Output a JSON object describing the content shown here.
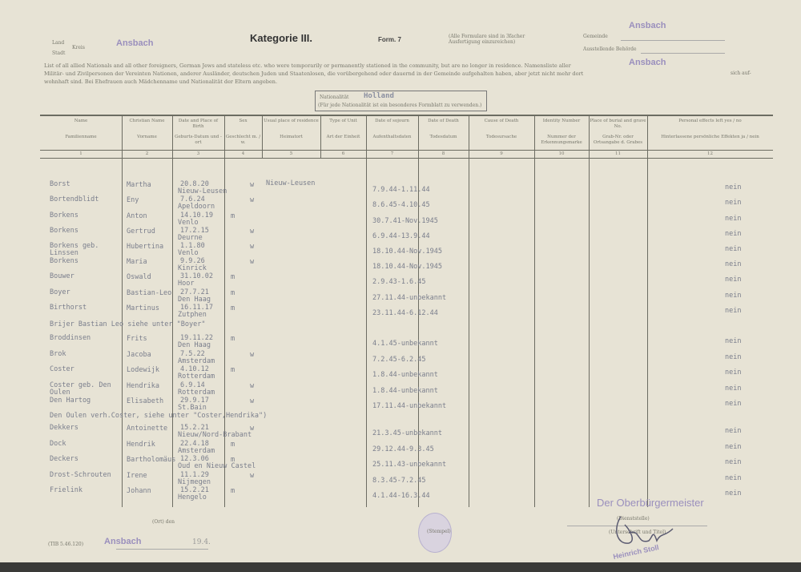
{
  "header": {
    "land_label": "Land",
    "kreis_label": "Kreis",
    "stadt_label": "Stadt",
    "kreis_stamp": "Ansbach",
    "category": "Kategorie III.",
    "form": "Form. 7",
    "note": "(Alle Formulare sind in 3facher Ausfertigung einzureichen)",
    "gemeinde_label": "Gemeinde",
    "gemeinde_stamp": "Ansbach",
    "behoerde_label": "Ausstellende Behörde",
    "behoerde_stamp": "Ansbach",
    "intro": "List of all allied Nationals and all other foreigners, German Jews and stateless etc. who were temporarily or permanently stationed in the community, but are no longer in residence. Namensliste aller Militär- und Zivilpersonen der Vereinten Nationen, anderer Ausländer, deutschen Juden und Staatenlosen, die vorübergehend oder dauernd in der Gemeinde aufgehalten haben, aber jetzt nicht mehr dort wohnhaft sind. Bei Ehefrauen auch Mädchenname und Nationalität der Eltern angeben.",
    "intro_tail": "sich auf-",
    "nationality_label": "Nationalität",
    "nationality_value": "Holland",
    "nationality_note": "(Für jede Nationalität ist ein besonderes Formblatt zu verwenden.)"
  },
  "columns": [
    {
      "en": "Name",
      "de": "Familienname",
      "num": "1"
    },
    {
      "en": "Christian Name",
      "de": "Vorname",
      "num": "2"
    },
    {
      "en": "Date and Place of Birth",
      "de": "Geburts-Datum und -ort",
      "num": "3"
    },
    {
      "en": "Sex",
      "de": "Geschlecht m. / w.",
      "num": "4"
    },
    {
      "en": "Usual place of residence",
      "de": "Heimatort",
      "num": "5"
    },
    {
      "en": "Type of Unit",
      "de": "Art der Einheit",
      "num": "6"
    },
    {
      "en": "Date of sojourn",
      "de": "Aufenthaltsdaten",
      "num": "7"
    },
    {
      "en": "Date of Death",
      "de": "Todesdatum",
      "num": "8"
    },
    {
      "en": "Cause of Death",
      "de": "Todesursache",
      "num": "9"
    },
    {
      "en": "Identity Number",
      "de": "Nummer der Erkennungsmarke",
      "num": "10"
    },
    {
      "en": "Place of burial and grave No.",
      "de": "Grab-Nr. oder Ortsangabe d. Grabes",
      "num": "11"
    },
    {
      "en": "Personal effects left yes / no",
      "de": "Hinterlassene persönliche Effekten ja / nein",
      "num": "12"
    }
  ],
  "rows": [
    {
      "name": "Borst",
      "first": "Martha",
      "birth": "20.8.20",
      "place": "Nieuw-Leusen",
      "sex": "w",
      "residence": "Nieuw-Leusen",
      "sojourn": "7.9.44-1.11.44",
      "effects": "nein"
    },
    {
      "name": "Bortendblidt",
      "first": "Eny",
      "birth": "7.6.24",
      "place": "Apeldoorn",
      "sex": "w",
      "residence": "",
      "sojourn": "8.6.45-4.10.45",
      "effects": "nein"
    },
    {
      "name": "Borkens",
      "first": "Anton",
      "birth": "14.10.19",
      "place": "Venlo",
      "sex": "m",
      "residence": "",
      "sojourn": "30.7.41-Nov.1945",
      "effects": "nein"
    },
    {
      "name": "Borkens",
      "first": "Gertrud",
      "birth": "17.2.15",
      "place": "Deurne",
      "sex": "w",
      "residence": "",
      "sojourn": "6.9.44-13.9.44",
      "effects": "nein"
    },
    {
      "name": "Borkens geb. Linssen",
      "first": "Hubertina",
      "birth": "1.1.80",
      "place": "Venlo",
      "sex": "w",
      "residence": "",
      "sojourn": "18.10.44-Nov.1945",
      "effects": "nein"
    },
    {
      "name": "Borkens",
      "first": "Maria",
      "birth": "9.9.26",
      "place": "Kinrick",
      "sex": "w",
      "residence": "",
      "sojourn": "18.10.44-Nov.1945",
      "effects": "nein"
    },
    {
      "name": "Bouwer",
      "first": "Oswald",
      "birth": "31.10.02",
      "place": "Hoor",
      "sex": "m",
      "residence": "",
      "sojourn": "2.9.43-1.6.45",
      "effects": "nein"
    },
    {
      "name": "Boyer",
      "first": "Bastian-Leo",
      "birth": "27.7.21",
      "place": "Den Haag",
      "sex": "m",
      "residence": "",
      "sojourn": "27.11.44-unbekannt",
      "effects": "nein"
    },
    {
      "name": "Birthorst",
      "first": "Martinus",
      "birth": "16.11.17",
      "place": "Zutphen",
      "sex": "m",
      "residence": "",
      "sojourn": "23.11.44-6.12.44",
      "effects": "nein"
    },
    {
      "note": "Brijer       Bastian Leo siehe unter \"Boyer\""
    },
    {
      "name": "Broddinsen",
      "first": "Frits",
      "birth": "19.11.22",
      "place": "Den Haag",
      "sex": "m",
      "residence": "",
      "sojourn": "4.1.45-unbekannt",
      "effects": "nein"
    },
    {
      "name": "Brok",
      "first": "Jacoba",
      "birth": "7.5.22",
      "place": "Amsterdam",
      "sex": "w",
      "residence": "",
      "sojourn": "7.2.45-6.2.45",
      "effects": "nein"
    },
    {
      "name": "Coster",
      "first": "Lodewijk",
      "birth": "4.10.12",
      "place": "Rotterdam",
      "sex": "m",
      "residence": "",
      "sojourn": "1.8.44-unbekannt",
      "effects": "nein"
    },
    {
      "name": "Coster geb. Den Oulen",
      "first": "Hendrika",
      "birth": "6.9.14",
      "place": "Rotterdam",
      "sex": "w",
      "residence": "",
      "sojourn": "1.8.44-unbekannt",
      "effects": "nein"
    },
    {
      "name": "Den Hartog",
      "first": "Elisabeth",
      "birth": "29.9.17",
      "place": "St.Bain",
      "sex": "w",
      "residence": "",
      "sojourn": "17.11.44-unbekannt",
      "effects": "nein"
    },
    {
      "note": "Den Oulen verh.Coster, siehe unter \"Coster,Hendrika\")"
    },
    {
      "name": "Dekkers",
      "first": "Antoinette",
      "birth": "15.2.21",
      "place": "Nieuw/Nord-Brabant",
      "sex": "w",
      "residence": "",
      "sojourn": "21.3.45-unbekannt",
      "effects": "nein"
    },
    {
      "name": "Dock",
      "first": "Hendrik",
      "birth": "22.4.18",
      "place": "Amsterdam",
      "sex": "m",
      "residence": "",
      "sojourn": "29.12.44-9.3.45",
      "effects": "nein"
    },
    {
      "name": "Deckers",
      "first": "Bartholomäus",
      "birth": "12.3.06",
      "place": "Oud en Nieuw Castel",
      "sex": "m",
      "residence": "",
      "sojourn": "25.11.43-unbekannt",
      "effects": "nein"
    },
    {
      "name": "Drost-Schrouten",
      "first": "Irene",
      "birth": "11.1.29",
      "place": "Nijmegen",
      "sex": "w",
      "residence": "",
      "sojourn": "8.3.45-7.2.45",
      "effects": "nein"
    },
    {
      "name": "Frielink",
      "first": "Johann",
      "birth": "15.2.21",
      "place": "Hengelo",
      "sex": "m",
      "residence": "",
      "sojourn": "4.1.44-16.3.44",
      "effects": "nein"
    }
  ],
  "footer": {
    "place_label": "(Ort) den",
    "place_stamp": "Ansbach",
    "date": "19.4.",
    "seal_label": "(Stempel)",
    "office_stamp": "Der Oberbürgermeister",
    "office_label": "(Dienststelle)",
    "signature_label": "(Unterschrift und Titel)",
    "signer_stamp": "Heinrich Stoll",
    "form_code": "(TIB 5.46.120)"
  },
  "colors": {
    "paper": "#e7e3d5",
    "stamp": "#9a8fbd",
    "type": "#7a7e8c"
  }
}
